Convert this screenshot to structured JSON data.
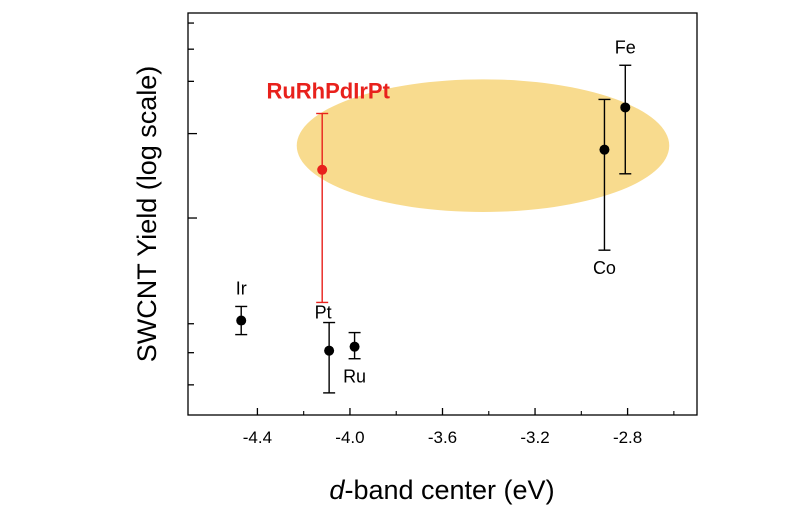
{
  "chart_data": {
    "type": "scatter",
    "xlabel_prefix": "d",
    "xlabel_rest": "-band center (eV)",
    "ylabel": "SWCNT Yield (log scale)",
    "xlim": [
      -4.7,
      -2.5
    ],
    "ylim": [
      0,
      10
    ],
    "yscale": "log",
    "x_ticks": [
      -4.4,
      -4.0,
      -3.6,
      -3.2,
      -2.8
    ],
    "x_tick_labels": [
      "-4.4",
      "-4.0",
      "-3.6",
      "-3.2",
      "-2.8"
    ],
    "y_tick_labels_shown": false,
    "grid": false,
    "colors": {
      "default": "#000000",
      "highlight": "#e8211c",
      "region": "#f7d57a"
    },
    "highlight_region": {
      "x_range": [
        -4.23,
        -2.62
      ],
      "y_range": [
        5.05,
        8.35
      ]
    },
    "points": [
      {
        "label": "Ir",
        "x": -4.47,
        "y": 2.35,
        "err_low": 0.35,
        "err_high": 0.35,
        "color": "#000000",
        "label_pos": "above"
      },
      {
        "label": "Pt",
        "x": -4.09,
        "y": 1.6,
        "err_low": 1.05,
        "err_high": 0.7,
        "color": "#000000",
        "label_pos": "above-left"
      },
      {
        "label": "Ru",
        "x": -3.98,
        "y": 1.7,
        "err_low": 0.3,
        "err_high": 0.35,
        "color": "#000000",
        "label_pos": "below"
      },
      {
        "label": "RuRhPdIrPt",
        "x": -4.12,
        "y": 6.1,
        "err_low": 3.3,
        "err_high": 1.4,
        "color": "#e8211c",
        "label_pos": "above",
        "highlight": true
      },
      {
        "label": "Co",
        "x": -2.9,
        "y": 6.6,
        "err_low": 2.5,
        "err_high": 1.25,
        "color": "#000000",
        "label_pos": "below"
      },
      {
        "label": "Fe",
        "x": -2.81,
        "y": 7.65,
        "err_low": 1.65,
        "err_high": 1.05,
        "color": "#000000",
        "label_pos": "above"
      }
    ]
  }
}
